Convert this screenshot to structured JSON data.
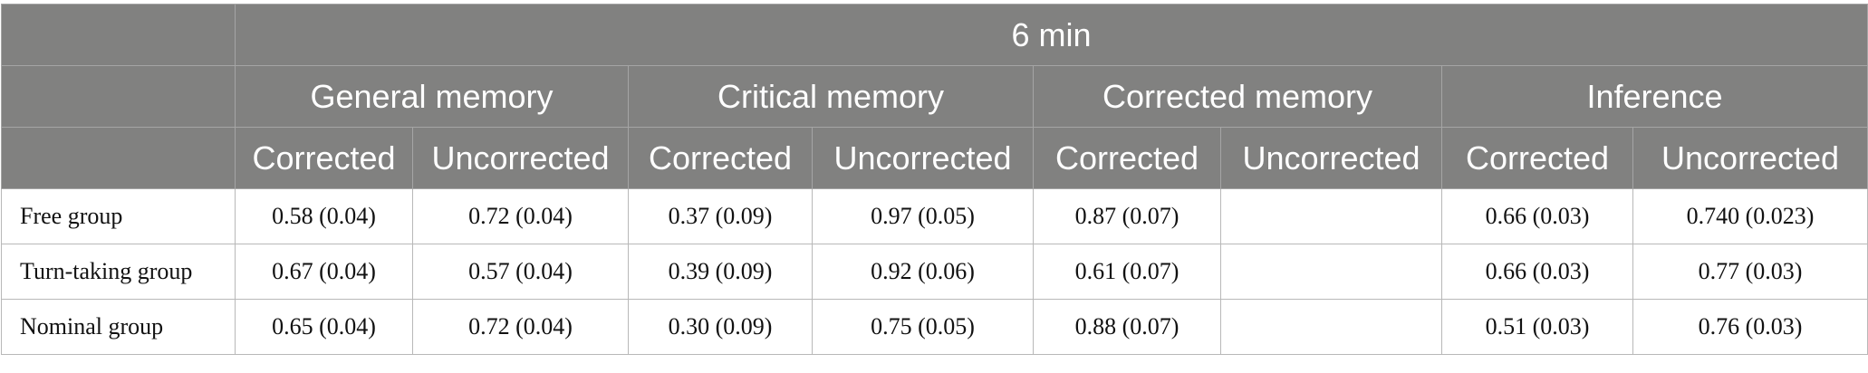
{
  "header": {
    "title": "6 min",
    "groups": [
      "General memory",
      "Critical memory",
      "Corrected memory",
      "Inference"
    ],
    "subheaders": [
      "Corrected",
      "Uncorrected",
      "Corrected",
      "Uncorrected",
      "Corrected",
      "Uncorrected",
      "Corrected",
      "Uncorrected"
    ]
  },
  "table": {
    "rows": [
      {
        "label": "Free group",
        "cells": [
          "0.58 (0.04)",
          "0.72 (0.04)",
          "0.37 (0.09)",
          "0.97 (0.05)",
          "0.87 (0.07)",
          null,
          "0.66 (0.03)",
          "0.740 (0.023)"
        ]
      },
      {
        "label": "Turn-taking group",
        "cells": [
          "0.67 (0.04)",
          "0.57 (0.04)",
          "0.39 (0.09)",
          "0.92 (0.06)",
          "0.61 (0.07)",
          null,
          "0.66 (0.03)",
          "0.77 (0.03)"
        ]
      },
      {
        "label": "Nominal group",
        "cells": [
          "0.65 (0.04)",
          "0.72 (0.04)",
          "0.30 (0.09)",
          "0.75 (0.05)",
          "0.88 (0.07)",
          null,
          "0.51 (0.03)",
          "0.76 (0.03)"
        ]
      }
    ]
  }
}
